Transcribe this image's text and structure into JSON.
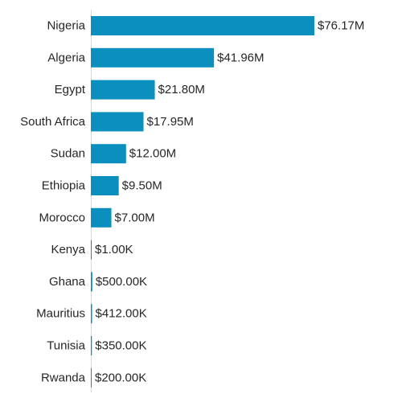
{
  "chart_data": {
    "type": "bar",
    "orientation": "horizontal",
    "categories": [
      "Nigeria",
      "Algeria",
      "Egypt",
      "South Africa",
      "Sudan",
      "Ethiopia",
      "Morocco",
      "Kenya",
      "Ghana",
      "Mauritius",
      "Tunisia",
      "Rwanda"
    ],
    "values": [
      76170000,
      41960000,
      21800000,
      17950000,
      12000000,
      9500000,
      7000000,
      1000,
      500000,
      412000,
      350000,
      200000
    ],
    "data_labels": [
      "$76.17M",
      "$41.96M",
      "$21.80M",
      "$17.95M",
      "$12.00M",
      "$9.50M",
      "$7.00M",
      "$1.00K",
      "$500.00K",
      "$412.00K",
      "$350.00K",
      "$200.00K"
    ],
    "title": "",
    "xlabel": "",
    "ylabel": "",
    "xlim": [
      0,
      76170000
    ],
    "grid": false,
    "legend": "none",
    "bar_color": "#0a8fbf"
  }
}
